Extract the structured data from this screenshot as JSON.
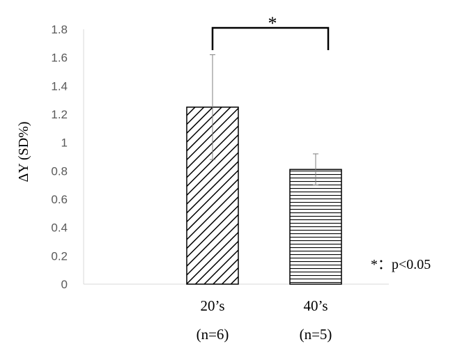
{
  "chart_data": {
    "type": "bar",
    "title": "",
    "xlabel": "",
    "ylabel": "ΔY (SD%)",
    "ylim": [
      0,
      1.8
    ],
    "yticks": [
      "1.8",
      "1.6",
      "1.4",
      "1.2",
      "1",
      "0.8",
      "0.6",
      "0.4",
      "0.2",
      "0"
    ],
    "categories": [
      "20’s",
      "40’s"
    ],
    "sample_sizes": [
      "(n=6)",
      "(n=5)"
    ],
    "values": [
      1.25,
      0.81
    ],
    "error": [
      0.37,
      0.11
    ],
    "patterns": [
      "diagonal-hatch",
      "horizontal-lines"
    ],
    "significance": {
      "bracket_label": "*",
      "note": "*：p<0.05"
    },
    "grid": false,
    "legend": "none"
  }
}
